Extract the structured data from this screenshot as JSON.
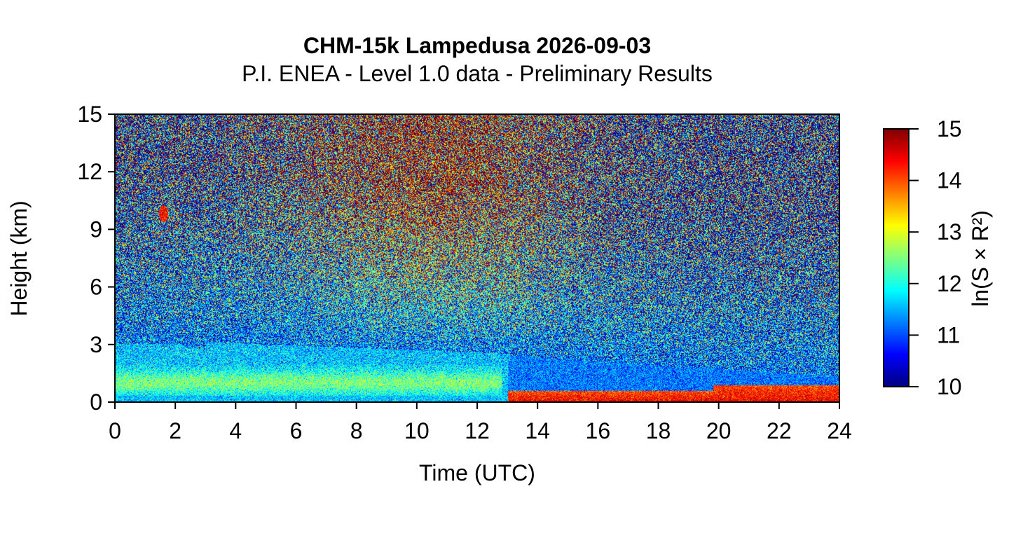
{
  "chart_data": {
    "type": "heatmap",
    "title": "CHM-15k Lampedusa 2026-09-03",
    "subtitle": "P.I. ENEA - Level 1.0 data - Preliminary Results",
    "xlabel": "Time (UTC)",
    "ylabel": "Height (km)",
    "xlim": [
      0,
      24
    ],
    "ylim": [
      0,
      15
    ],
    "x_ticks": [
      0,
      2,
      4,
      6,
      8,
      10,
      12,
      14,
      16,
      18,
      20,
      22,
      24
    ],
    "y_ticks": [
      0,
      3,
      6,
      9,
      12,
      15
    ],
    "x_tick_labels": [
      "0",
      "2",
      "4",
      "6",
      "8",
      "10",
      "12",
      "14",
      "16",
      "18",
      "20",
      "22",
      "24"
    ],
    "y_tick_labels": [
      "0",
      "3",
      "6",
      "9",
      "12",
      "15"
    ],
    "colorbar": {
      "label": "ln(S × R²)",
      "range": [
        10,
        15
      ],
      "ticks": [
        10,
        11,
        12,
        13,
        14,
        15
      ],
      "tick_labels": [
        "10",
        "11",
        "12",
        "13",
        "14",
        "15"
      ],
      "colormap": [
        "#00007f",
        "#0000ff",
        "#007fff",
        "#00ffff",
        "#7fff7f",
        "#ffff00",
        "#ff7f00",
        "#ff0000",
        "#7f0000"
      ]
    },
    "layers": [
      {
        "description": "residual/aerosol layer top",
        "time_start": 0,
        "time_end": 13,
        "height_top_km": 3.1,
        "ln_value": 11.6
      },
      {
        "description": "dense aerosol band",
        "time_start": 0,
        "time_end": 12.5,
        "height_km": [
          0.3,
          1.8
        ],
        "ln_value": 12.2
      },
      {
        "description": "boundary layer high backscatter",
        "time_start": 13,
        "time_end": 24,
        "height_km": [
          0.0,
          0.6
        ],
        "ln_value": 14.0
      },
      {
        "description": "elevated layer",
        "time_start": 13,
        "time_end": 20,
        "height_km": [
          0.6,
          2.0
        ],
        "ln_value": 11.5
      },
      {
        "description": "isolated feature",
        "time": 1.6,
        "height_km": 9.8,
        "ln_value": 14.3
      }
    ],
    "background_noise": {
      "below_3km_ln": 11.0,
      "mid_6km_ln": 11.2,
      "upper_ln_day": 13.8,
      "upper_ln_night": 11.5
    }
  }
}
